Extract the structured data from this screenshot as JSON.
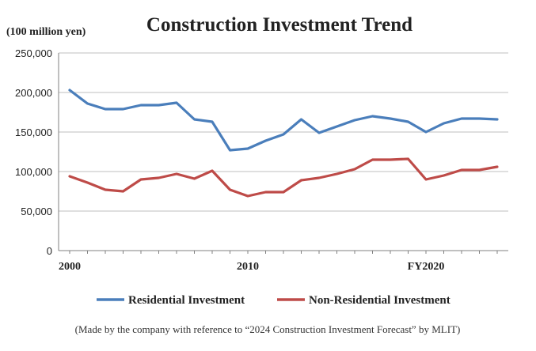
{
  "chart_data": {
    "type": "line",
    "title": "Construction Investment Trend",
    "unit_label": "(100 million yen)",
    "note": "(Made by the company with reference to “2024 Construction Investment Forecast” by MLIT)",
    "x": [
      2000,
      2001,
      2002,
      2003,
      2004,
      2005,
      2006,
      2007,
      2008,
      2009,
      2010,
      2011,
      2012,
      2013,
      2014,
      2015,
      2016,
      2017,
      2018,
      2019,
      2020,
      2021,
      2022,
      2023,
      2024
    ],
    "x_tick_labels": [
      {
        "x": 2000,
        "label": "2000"
      },
      {
        "x": 2010,
        "label": "2010"
      },
      {
        "x": 2020,
        "label": "FY2020"
      }
    ],
    "ylim": [
      0,
      250000
    ],
    "y_ticks": [
      0,
      50000,
      100000,
      150000,
      200000,
      250000
    ],
    "y_tick_labels": [
      "0",
      "50,000",
      "100,000",
      "150,000",
      "200,000",
      "250,000"
    ],
    "grid": true,
    "legend_position": "bottom",
    "series": [
      {
        "name": "Residential Investment",
        "color": "#4a7ebb",
        "values": [
          203000,
          186000,
          179000,
          179000,
          184000,
          184000,
          187000,
          166000,
          163000,
          127000,
          129000,
          139000,
          147000,
          166000,
          149000,
          157000,
          165000,
          170000,
          167000,
          163000,
          150000,
          161000,
          167000,
          167000,
          166000
        ]
      },
      {
        "name": "Non-Residential Investment",
        "color": "#be4b48",
        "values": [
          94000,
          86000,
          77000,
          75000,
          90000,
          92000,
          97000,
          91000,
          101000,
          77000,
          69000,
          74000,
          74000,
          89000,
          92000,
          97000,
          103000,
          115000,
          115000,
          116000,
          90000,
          95000,
          102000,
          102000,
          106000
        ]
      }
    ]
  }
}
